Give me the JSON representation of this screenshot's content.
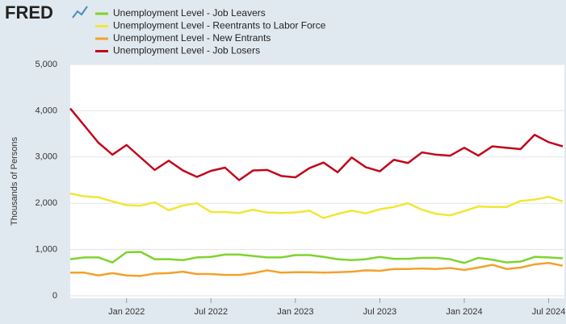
{
  "logo": "FRED",
  "chart_data": {
    "type": "line",
    "y_label": "Thousands of Persons",
    "x": [
      "2021-09",
      "2021-10",
      "2021-11",
      "2021-12",
      "2022-01",
      "2022-02",
      "2022-03",
      "2022-04",
      "2022-05",
      "2022-06",
      "2022-07",
      "2022-08",
      "2022-09",
      "2022-10",
      "2022-11",
      "2022-12",
      "2023-01",
      "2023-02",
      "2023-03",
      "2023-04",
      "2023-05",
      "2023-06",
      "2023-07",
      "2023-08",
      "2023-09",
      "2023-10",
      "2023-11",
      "2023-12",
      "2024-01",
      "2024-02",
      "2024-03",
      "2024-04",
      "2024-05",
      "2024-06",
      "2024-07",
      "2024-08"
    ],
    "xticks": [
      {
        "value": "2022-01",
        "label": "Jan 2022"
      },
      {
        "value": "2022-07",
        "label": "Jul 2022"
      },
      {
        "value": "2023-01",
        "label": "Jan 2023"
      },
      {
        "value": "2023-07",
        "label": "Jul 2023"
      },
      {
        "value": "2024-01",
        "label": "Jan 2024"
      },
      {
        "value": "2024-07",
        "label": "Jul 2024"
      }
    ],
    "ylim": [
      0,
      5000
    ],
    "yticks": [
      0,
      {
        "value": 1000,
        "label": "1,000"
      },
      {
        "value": 2000,
        "label": "2,000"
      },
      {
        "value": 3000,
        "label": "3,000"
      },
      {
        "value": 4000,
        "label": "4,000"
      },
      {
        "value": 5000,
        "label": "5,000"
      }
    ],
    "grid": true,
    "series": [
      {
        "name": "Unemployment Level - Job Leavers",
        "color": "#7ed42c",
        "values": [
          790,
          830,
          830,
          720,
          940,
          950,
          790,
          790,
          770,
          830,
          840,
          890,
          890,
          860,
          830,
          830,
          880,
          880,
          840,
          790,
          770,
          790,
          840,
          800,
          800,
          820,
          820,
          790,
          710,
          820,
          780,
          720,
          740,
          840,
          830,
          810
        ]
      },
      {
        "name": "Unemployment Level - Reentrants to Labor Force",
        "color": "#f2e635",
        "values": [
          2210,
          2150,
          2130,
          2040,
          1960,
          1950,
          2020,
          1850,
          1950,
          2000,
          1810,
          1810,
          1790,
          1860,
          1800,
          1790,
          1800,
          1840,
          1680,
          1770,
          1840,
          1780,
          1870,
          1920,
          2000,
          1860,
          1770,
          1740,
          1830,
          1930,
          1920,
          1920,
          2050,
          2080,
          2140,
          2040
        ]
      },
      {
        "name": "Unemployment Level - New Entrants",
        "color": "#f4a12a",
        "values": [
          500,
          500,
          440,
          490,
          440,
          430,
          480,
          490,
          520,
          470,
          470,
          450,
          450,
          490,
          550,
          500,
          510,
          510,
          500,
          510,
          520,
          550,
          540,
          580,
          580,
          590,
          580,
          600,
          560,
          610,
          670,
          580,
          610,
          680,
          710,
          650
        ]
      },
      {
        "name": "Unemployment Level - Job Losers",
        "color": "#c1061c",
        "values": [
          4050,
          3680,
          3310,
          3050,
          3260,
          2990,
          2720,
          2920,
          2710,
          2570,
          2700,
          2770,
          2500,
          2710,
          2720,
          2590,
          2560,
          2760,
          2880,
          2670,
          2990,
          2780,
          2690,
          2940,
          2870,
          3100,
          3050,
          3030,
          3200,
          3030,
          3230,
          3200,
          3170,
          3480,
          3320,
          3230
        ]
      }
    ]
  }
}
